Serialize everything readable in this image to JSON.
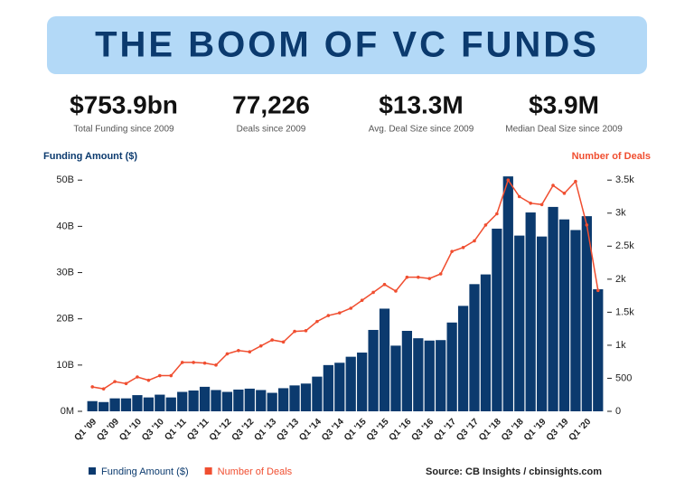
{
  "header": {
    "title": "THE BOOM OF VC FUNDS"
  },
  "stats": [
    {
      "value": "$753.9bn",
      "caption": "Total Funding since 2009"
    },
    {
      "value": "77,226",
      "caption": "Deals since 2009"
    },
    {
      "value": "$13.3M",
      "caption": "Avg. Deal Size since 2009"
    },
    {
      "value": "$3.9M",
      "caption": "Median Deal Size since 2009"
    }
  ],
  "chart_data": {
    "type": "bar",
    "y_label": "Funding Amount ($)",
    "y2_label": "Number of Deals",
    "categories": [
      "Q1 '09",
      null,
      "Q3 '09",
      null,
      "Q1 '10",
      null,
      "Q3 '10",
      null,
      "Q1 '11",
      null,
      "Q3 '11",
      null,
      "Q1 '12",
      null,
      "Q3 '12",
      null,
      "Q1 '13",
      null,
      "Q3 '13",
      null,
      "Q1 '14",
      null,
      "Q3 '14",
      null,
      "Q1 '15",
      null,
      "Q3 '15",
      null,
      "Q1 '16",
      null,
      "Q3 '16",
      null,
      "Q1 '17",
      null,
      "Q3 '17",
      null,
      "Q1 '18",
      null,
      "Q3 '18",
      null,
      "Q1 '19",
      null,
      "Q3 '19",
      null,
      "Q1 '20",
      null
    ],
    "series": [
      {
        "name": "Funding Amount ($)",
        "color": "#0b3a6e",
        "type": "bar",
        "values": [
          2.2,
          2.0,
          2.8,
          2.8,
          3.5,
          3.0,
          3.6,
          3.0,
          4.2,
          4.5,
          5.3,
          4.6,
          4.2,
          4.7,
          4.9,
          4.6,
          4.0,
          5.0,
          5.6,
          6.0,
          7.5,
          10.0,
          10.5,
          11.8,
          12.7,
          17.6,
          22.2,
          14.2,
          17.4,
          15.8,
          15.3,
          15.4,
          19.2,
          22.8,
          27.5,
          29.6,
          39.5,
          50.8,
          38.0,
          43.0,
          37.8,
          44.2,
          41.5,
          39.2,
          42.2,
          26.4
        ]
      },
      {
        "name": "Number of Deals",
        "color": "#f04e30",
        "type": "line",
        "axis": "y2",
        "values": [
          370,
          340,
          450,
          420,
          520,
          470,
          540,
          540,
          740,
          740,
          730,
          700,
          870,
          920,
          900,
          990,
          1080,
          1050,
          1210,
          1220,
          1360,
          1450,
          1490,
          1560,
          1680,
          1800,
          1920,
          1820,
          2030,
          2030,
          2010,
          2080,
          2420,
          2480,
          2580,
          2820,
          2990,
          3500,
          3250,
          3150,
          3130,
          3420,
          3300,
          3480,
          2820,
          1830
        ]
      }
    ],
    "ylim": [
      0,
      52
    ],
    "yticks": [
      {
        "value": 0,
        "label": "0M"
      },
      {
        "value": 10,
        "label": "10B"
      },
      {
        "value": 20,
        "label": "20B"
      },
      {
        "value": 30,
        "label": "30B"
      },
      {
        "value": 40,
        "label": "40B"
      },
      {
        "value": 50,
        "label": "50B"
      }
    ],
    "y2lim": [
      0,
      3640
    ],
    "y2ticks": [
      0,
      500,
      {
        "value": 1000,
        "label": "1k"
      },
      {
        "value": 1500,
        "label": "1.5k"
      },
      {
        "value": 2000,
        "label": "2k"
      },
      {
        "value": 2500,
        "label": "2.5k"
      },
      {
        "value": 3000,
        "label": "3k"
      },
      {
        "value": 3500,
        "label": "3.5k"
      }
    ],
    "legend": "bottom-left"
  },
  "source": "Source: CB Insights / cbinsights.com"
}
